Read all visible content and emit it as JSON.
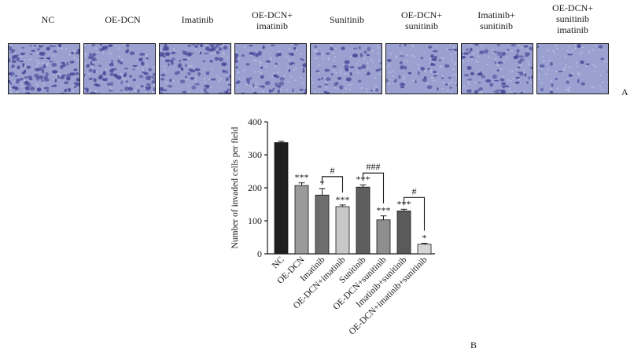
{
  "panel_a": {
    "tag": "A",
    "labels": [
      "NC",
      "OE-DCN",
      "Imatinib",
      "OE-DCN+\nimatinib",
      "Sunitinib",
      "OE-DCN+\nsunitinib",
      "Imatinib+\nsunitinib",
      "OE-DCN+\nsunitinib\nimatinib"
    ],
    "densities": [
      0.95,
      0.75,
      0.7,
      0.45,
      0.35,
      0.3,
      0.55,
      0.08
    ],
    "stain_color": "#4a4a9a",
    "background_color": "#9aa0cf"
  },
  "panel_b": {
    "tag": "B"
  },
  "chart_data": {
    "type": "bar",
    "ylabel": "Number of invaded cells per field",
    "ylim": [
      0,
      400
    ],
    "yticks": [
      0,
      100,
      200,
      300,
      400
    ],
    "categories": [
      "NC",
      "OE-DCN",
      "Imatinib",
      "OE-DCN+imatinib",
      "Sunitinib",
      "OE-DCN+sunitinib",
      "Imatinib+sunitinib",
      "OE-DCN+imatinib+sunitinib"
    ],
    "values": [
      337,
      207,
      178,
      143,
      202,
      103,
      130,
      29
    ],
    "errors": [
      4,
      8,
      20,
      5,
      7,
      12,
      5,
      3
    ],
    "colors": [
      "#1f1f1f",
      "#9a9a9a",
      "#6e6e6e",
      "#c8c8c8",
      "#5e5e5e",
      "#8e8e8e",
      "#5a5a5a",
      "#d6d6d6"
    ],
    "significance": [
      "",
      "***",
      "*",
      "***",
      "***",
      "***",
      "***",
      "*"
    ],
    "brackets": [
      {
        "from": 2,
        "to": 3,
        "label": "#"
      },
      {
        "from": 4,
        "to": 5,
        "label": "###"
      },
      {
        "from": 6,
        "to": 7,
        "label": "#"
      }
    ]
  }
}
